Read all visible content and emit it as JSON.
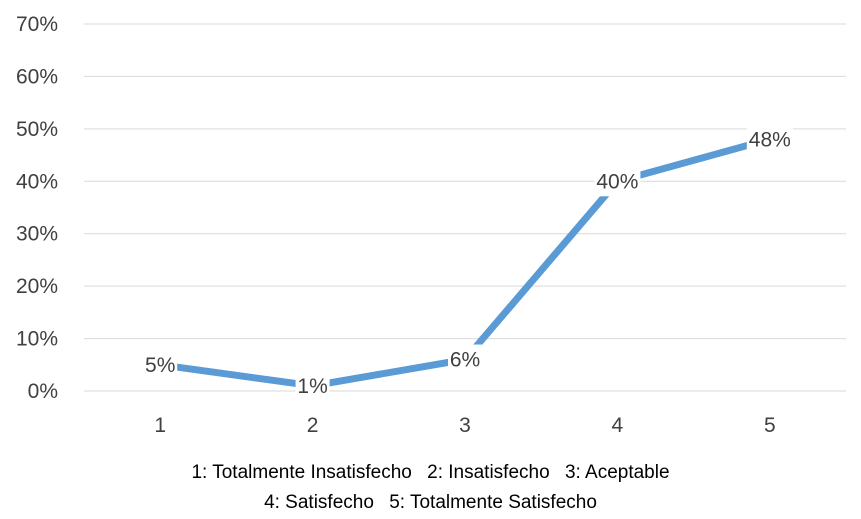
{
  "chart_data": {
    "type": "line",
    "x": [
      1,
      2,
      3,
      4,
      5
    ],
    "series": [
      {
        "values": [
          5,
          1,
          6,
          40,
          48
        ],
        "color": "#5b9bd5"
      }
    ],
    "data_labels": [
      "5%",
      "1%",
      "6%",
      "40%",
      "48%"
    ],
    "y_ticks": [
      "0%",
      "10%",
      "20%",
      "30%",
      "40%",
      "50%",
      "60%",
      "70%"
    ],
    "x_ticks": [
      "1",
      "2",
      "3",
      "4",
      "5"
    ],
    "ylim": [
      0,
      70
    ],
    "y_unit": "%",
    "grid": true,
    "title": "",
    "xlabel": "",
    "ylabel": "",
    "legend_position": "bottom",
    "legend": [
      [
        "1: Totalmente Insatisfecho",
        "2: Insatisfecho",
        "3: Aceptable"
      ],
      [
        "4: Satisfecho",
        "5: Totalmente Satisfecho"
      ]
    ],
    "gridline_color": "#d9d9d9",
    "text_color": "#404040"
  }
}
